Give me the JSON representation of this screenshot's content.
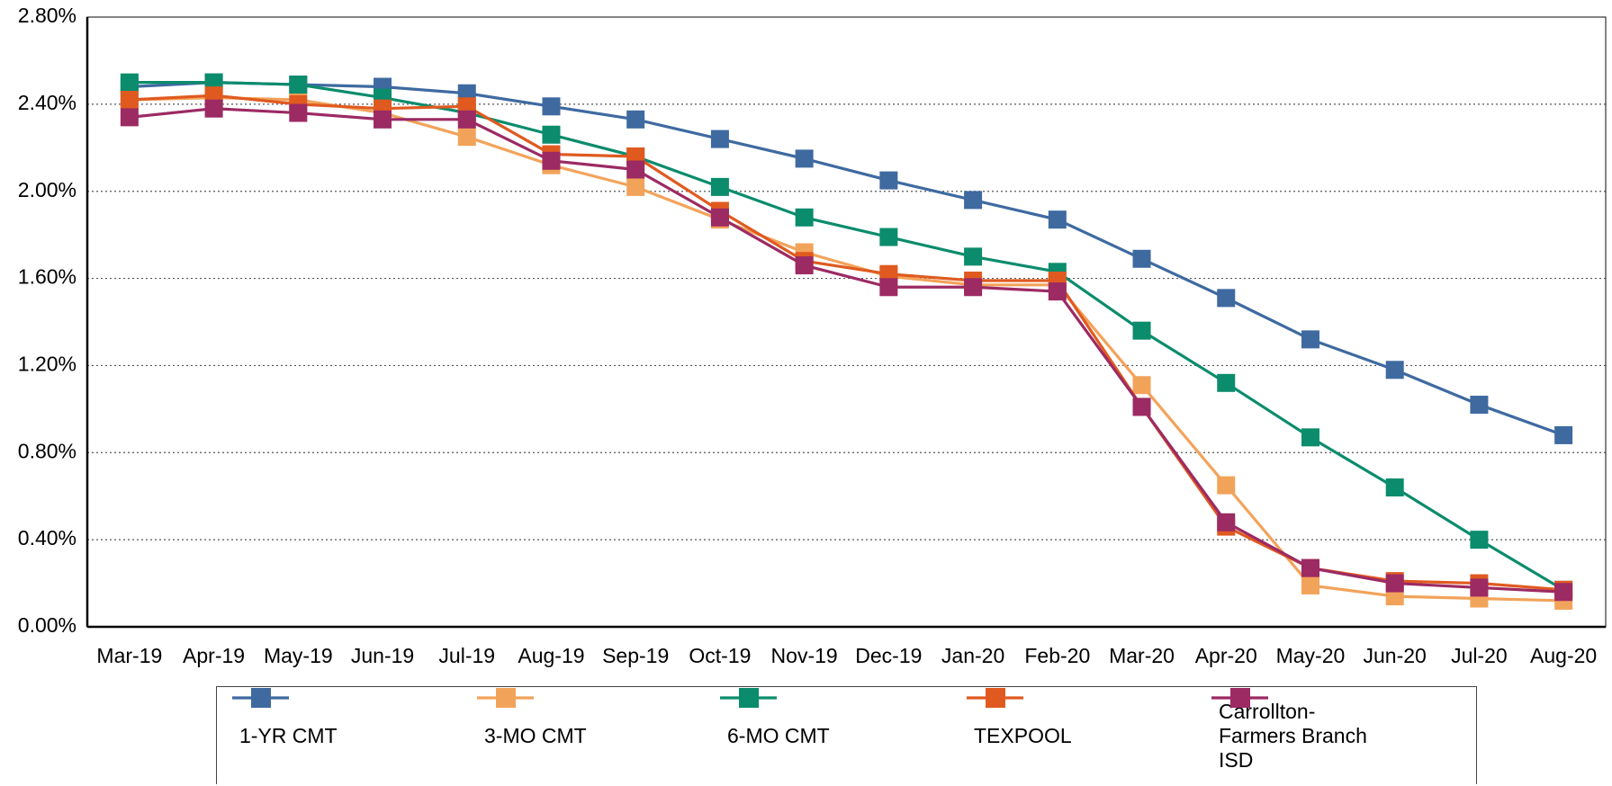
{
  "chart_data": {
    "type": "line",
    "categories": [
      "Mar-19",
      "Apr-19",
      "May-19",
      "Jun-19",
      "Jul-19",
      "Aug-19",
      "Sep-19",
      "Oct-19",
      "Nov-19",
      "Dec-19",
      "Jan-20",
      "Feb-20",
      "Mar-20",
      "Apr-20",
      "May-20",
      "Jun-20",
      "Jul-20",
      "Aug-20"
    ],
    "series": [
      {
        "name": "1-YR CMT",
        "color": "#3e6aa0",
        "values": [
          2.48,
          2.5,
          2.49,
          2.48,
          2.45,
          2.39,
          2.33,
          2.24,
          2.15,
          2.05,
          1.96,
          1.87,
          1.69,
          1.51,
          1.32,
          1.18,
          1.02,
          0.88
        ]
      },
      {
        "name": "3-MO CMT",
        "color": "#f2a35a",
        "values": [
          2.42,
          2.43,
          2.42,
          2.36,
          2.25,
          2.12,
          2.02,
          1.87,
          1.72,
          1.61,
          1.57,
          1.57,
          1.11,
          0.65,
          0.19,
          0.14,
          0.13,
          0.12
        ]
      },
      {
        "name": "6-MO CMT",
        "color": "#0b8c6c",
        "values": [
          2.5,
          2.5,
          2.49,
          2.43,
          2.36,
          2.26,
          2.16,
          2.02,
          1.88,
          1.79,
          1.7,
          1.63,
          1.36,
          1.12,
          0.87,
          0.64,
          0.4,
          0.17
        ]
      },
      {
        "name": "TEXPOOL",
        "color": "#e05a20",
        "values": [
          2.42,
          2.44,
          2.4,
          2.38,
          2.39,
          2.17,
          2.16,
          1.91,
          1.68,
          1.62,
          1.59,
          1.59,
          1.01,
          0.46,
          0.27,
          0.21,
          0.2,
          0.17
        ]
      },
      {
        "name": "Carrollton-Farmers Branch ISD",
        "color": "#9c2a63",
        "values": [
          2.34,
          2.38,
          2.36,
          2.33,
          2.33,
          2.14,
          2.1,
          1.88,
          1.66,
          1.56,
          1.56,
          1.54,
          1.01,
          0.48,
          0.27,
          0.2,
          0.18,
          0.16
        ]
      }
    ],
    "ylim": [
      0,
      2.8
    ],
    "yticks": [
      {
        "value": 0,
        "label": "0.00%"
      },
      {
        "value": 0.4,
        "label": "0.40%"
      },
      {
        "value": 0.8,
        "label": "0.80%"
      },
      {
        "value": 1.2,
        "label": "1.20%"
      },
      {
        "value": 1.6,
        "label": "1.60%"
      },
      {
        "value": 2.0,
        "label": "2.00%"
      },
      {
        "value": 2.4,
        "label": "2.40%"
      },
      {
        "value": 2.8,
        "label": "2.80%"
      }
    ],
    "grid": true
  }
}
